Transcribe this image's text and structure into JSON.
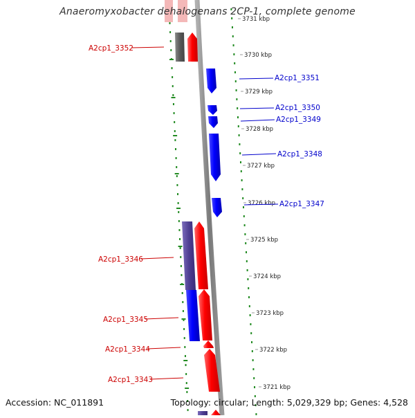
{
  "header": {
    "title": "Anaeromyxobacter dehalogenans 2CP-1, complete genome"
  },
  "footer": {
    "accession": "Accession: NC_011891",
    "topology": "Topology: circular; Length: 5,029,329 bp; Genes: 4,528"
  },
  "colors": {
    "forward_gene": "#ff0000",
    "reverse_gene": "#0000ff",
    "forward_label": "#cc0000",
    "reverse_label": "#0000cc",
    "backbone": "#808080",
    "ruler_dots": "#228b22",
    "cds_forward_track": "#5a4a9a",
    "cds_neutral_track": "#666666"
  },
  "scale_ticks": [
    {
      "label": "3731 kbp"
    },
    {
      "label": "3730 kbp"
    },
    {
      "label": "3729 kbp"
    },
    {
      "label": "3728 kbp"
    },
    {
      "label": "3727 kbp"
    },
    {
      "label": "3726 kbp"
    },
    {
      "label": "3725 kbp"
    },
    {
      "label": "3724 kbp"
    },
    {
      "label": "3723 kbp"
    },
    {
      "label": "3722 kbp"
    },
    {
      "label": "3721 kbp"
    }
  ],
  "genes_forward": [
    {
      "label": "A2cp1_3352"
    },
    {
      "label": "A2cp1_3346"
    },
    {
      "label": "A2cp1_3345"
    },
    {
      "label": "A2cp1_3344"
    },
    {
      "label": "A2cp1_3343"
    }
  ],
  "genes_reverse": [
    {
      "label": "A2cp1_3351"
    },
    {
      "label": "A2cp1_3350"
    },
    {
      "label": "A2cp1_3349"
    },
    {
      "label": "A2cp1_3348"
    },
    {
      "label": "A2cp1_3347"
    }
  ]
}
